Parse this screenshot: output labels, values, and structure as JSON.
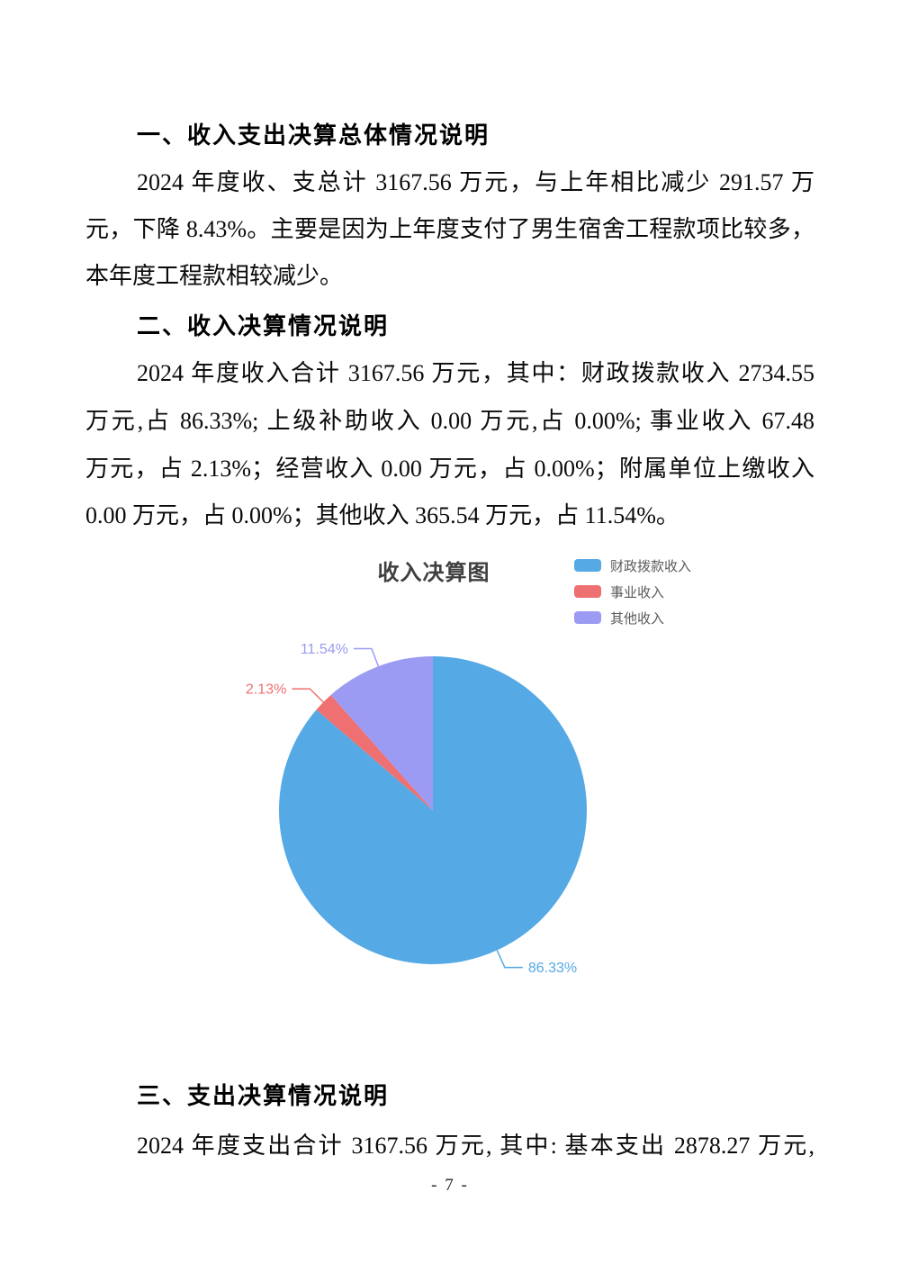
{
  "document": {
    "sections": [
      {
        "heading": "一、收入支出决算总体情况说明",
        "lines": [
          "2024 年度收、支总计 3167.56 万元，与上年相比减少 291.57 万",
          "元，下降 8.43%。主要是因为上年度支付了男生宿舍工程款项比较多，",
          "本年度工程款相较减少。"
        ]
      },
      {
        "heading": "二、收入决算情况说明",
        "lines": [
          "2024 年度收入合计 3167.56 万元，其中：财政拨款收入 2734.55",
          "万元,占 86.33%; 上级补助收入 0.00 万元,占 0.00%; 事业收入 67.48",
          "万元，占 2.13%；经营收入 0.00 万元，占 0.00%；附属单位上缴收入",
          "0.00 万元，占 0.00%；其他收入 365.54 万元，占 11.54%。"
        ]
      },
      {
        "heading": "三、支出决算情况说明",
        "lines": [
          "2024 年度支出合计 3167.56 万元, 其中: 基本支出 2878.27 万元,"
        ]
      }
    ],
    "page_number": "- 7 -"
  },
  "chart_data": {
    "type": "pie",
    "title": "收入决算图",
    "categories": [
      "财政拨款收入",
      "事业收入",
      "其他收入"
    ],
    "values": [
      86.33,
      2.13,
      11.54
    ],
    "value_labels": [
      "86.33%",
      "2.13%",
      "11.54%"
    ],
    "unit": "percent",
    "colors": [
      "#55A9E4",
      "#EE7070",
      "#9B9BF3"
    ],
    "start_angle": "12-oclock-clockwise",
    "legend_position": "top-right",
    "label_style": "outside-with-leader-lines"
  }
}
